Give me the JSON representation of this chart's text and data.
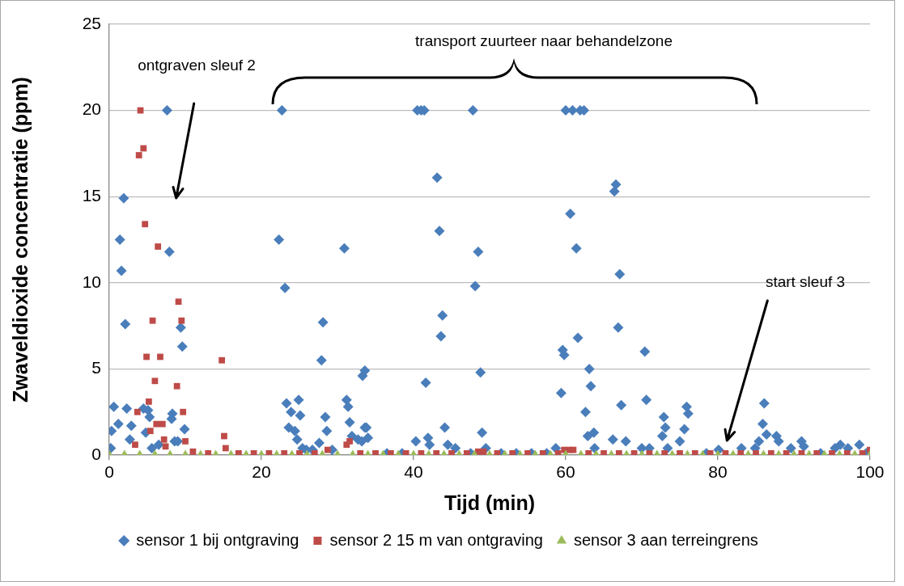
{
  "chart_data": {
    "type": "scatter",
    "xlabel": "Tijd (min)",
    "ylabel": "Zwaveldioxide concentratie (ppm)",
    "xlim": [
      0,
      100
    ],
    "xticks": [
      0,
      20,
      40,
      60,
      80,
      100
    ],
    "ylim": [
      0,
      25
    ],
    "yticks": [
      0,
      5,
      10,
      15,
      20,
      25
    ],
    "grid": "y",
    "legend": "bottom",
    "annotations": [
      "ontgraven sleuf 2",
      "transport zuurteer naar behandelzone",
      "start sleuf 3"
    ],
    "series": [
      {
        "name": "sensor 1 bij ontgraving",
        "color": "#4a7ebb",
        "marker": "diamond",
        "x": [
          0.2,
          0.3,
          0.6,
          1.2,
          1.4,
          1.6,
          1.9,
          2.1,
          2.3,
          2.7,
          2.9,
          4.5,
          4.8,
          5.1,
          5.3,
          5.6,
          6.5,
          7.6,
          7.9,
          8.2,
          8.3,
          8.6,
          9.0,
          9.4,
          9.6,
          9.9,
          22.3,
          22.7,
          23.1,
          23.3,
          23.6,
          23.9,
          24.4,
          24.7,
          24.9,
          25.1,
          25.4,
          25.9,
          26.7,
          27.6,
          27.9,
          28.1,
          28.4,
          28.6,
          29.3,
          30.9,
          31.2,
          31.4,
          31.6,
          31.9,
          32.7,
          33.2,
          33.3,
          33.6,
          33.6,
          33.8,
          34.0,
          36.5,
          38.5,
          40.3,
          40.5,
          41.0,
          41.4,
          41.6,
          41.9,
          42.1,
          43.1,
          43.4,
          43.6,
          43.8,
          44.1,
          44.5,
          45.5,
          47.5,
          47.8,
          48.1,
          48.5,
          48.8,
          49.0,
          49.5,
          51.5,
          53.5,
          55.5,
          57.5,
          58.7,
          59.4,
          59.6,
          59.8,
          60.0,
          60.6,
          60.9,
          61.4,
          61.6,
          61.9,
          62.4,
          62.6,
          62.9,
          63.1,
          63.3,
          63.7,
          63.8,
          66.2,
          66.4,
          66.6,
          66.9,
          67.1,
          67.3,
          67.9,
          70.0,
          70.4,
          70.6,
          71.0,
          72.7,
          72.9,
          73.1,
          73.4,
          75.0,
          75.6,
          75.9,
          76.1,
          78.5,
          80.1,
          83.1,
          84.9,
          85.4,
          85.9,
          86.1,
          86.4,
          87.7,
          88.0,
          89.6,
          91.0,
          91.3,
          93.5,
          95.4,
          96.1,
          97.1,
          98.6,
          99.5
        ],
        "values": [
          0.4,
          1.4,
          2.8,
          1.8,
          12.5,
          10.7,
          14.9,
          7.6,
          2.7,
          0.9,
          1.7,
          2.7,
          1.3,
          2.6,
          2.2,
          0.4,
          0.6,
          20,
          11.8,
          2.1,
          2.4,
          0.8,
          0.8,
          7.4,
          6.3,
          1.5,
          12.5,
          20,
          9.7,
          3.0,
          1.6,
          2.5,
          1.4,
          0.9,
          3.2,
          2.3,
          0.4,
          0.3,
          0.3,
          0.7,
          5.5,
          7.7,
          2.2,
          1.4,
          0.3,
          12.0,
          3.2,
          2.8,
          1.9,
          1.1,
          0.9,
          0.8,
          4.6,
          4.9,
          1.6,
          1.6,
          1.0,
          0.1,
          0.1,
          0.8,
          20,
          20,
          20,
          4.2,
          1.0,
          0.6,
          16.1,
          13.0,
          6.9,
          8.1,
          1.6,
          0.6,
          0.4,
          0.1,
          20,
          9.8,
          11.8,
          4.8,
          1.3,
          0.4,
          0.1,
          0.1,
          0.1,
          0.1,
          0.4,
          3.6,
          6.1,
          5.8,
          20,
          14.0,
          20,
          12.0,
          6.8,
          20,
          20,
          2.5,
          1.1,
          5.0,
          4.0,
          1.3,
          0.4,
          0.9,
          15.3,
          15.7,
          7.4,
          10.5,
          2.9,
          0.8,
          0.4,
          6.0,
          3.2,
          0.4,
          1.1,
          2.2,
          1.6,
          0.4,
          0.8,
          1.5,
          2.8,
          2.4,
          0.1,
          0.3,
          0.4,
          0.4,
          0.8,
          1.8,
          3.0,
          1.2,
          1.1,
          0.8,
          0.4,
          0.8,
          0.5,
          0.1,
          0.4,
          0.6,
          0.4,
          0.6,
          0.1
        ]
      },
      {
        "name": "sensor 2 15 m van ontgraving",
        "color": "#be4b48",
        "marker": "square",
        "x": [
          3.4,
          3.7,
          3.9,
          4.1,
          4.5,
          4.7,
          4.9,
          5.2,
          5.4,
          5.7,
          6.0,
          6.2,
          6.4,
          6.7,
          7.0,
          7.2,
          7.4,
          8.9,
          9.1,
          9.5,
          9.7,
          10.0,
          11,
          13,
          14.8,
          15.1,
          15.3,
          17,
          19,
          21,
          23,
          25,
          27,
          28.7,
          31.2,
          31.6,
          33,
          35,
          37,
          39,
          41,
          43,
          45,
          47,
          48.5,
          49.2,
          51,
          53,
          55,
          57,
          59,
          59.8,
          60.5,
          61,
          63,
          65,
          67,
          69,
          71,
          73,
          75,
          77,
          79,
          81,
          83,
          85,
          87,
          89,
          91,
          93,
          95,
          97,
          99,
          100
        ],
        "values": [
          0.6,
          2.5,
          17.4,
          20,
          17.8,
          13.4,
          5.7,
          3.1,
          1.4,
          7.8,
          4.3,
          1.8,
          12.1,
          5.7,
          1.8,
          0.9,
          0.5,
          4.0,
          8.9,
          7.8,
          2.5,
          0.8,
          0.2,
          0.1,
          5.5,
          1.1,
          0.4,
          0.1,
          0.1,
          0.1,
          0.1,
          0.1,
          0.1,
          0.3,
          0.6,
          0.8,
          0.1,
          0.1,
          0.1,
          0.1,
          0.1,
          0.1,
          0.1,
          0.1,
          0.2,
          0.2,
          0.1,
          0.1,
          0.1,
          0.1,
          0.1,
          0.3,
          0.3,
          0.3,
          0.1,
          0.1,
          0.1,
          0.1,
          0.1,
          0.1,
          0.1,
          0.1,
          0.1,
          0.1,
          0.1,
          0.1,
          0.1,
          0.1,
          0.1,
          0.1,
          0.1,
          0.1,
          0.1,
          0.3
        ]
      },
      {
        "name": "sensor 3 aan terreingrens",
        "color": "#9bbb59",
        "marker": "triangle",
        "x": [
          0,
          2,
          4,
          6,
          8,
          10,
          12,
          14,
          16,
          18,
          20,
          22,
          24,
          26,
          28,
          30,
          32,
          34,
          36,
          38,
          40,
          42,
          44,
          46,
          48,
          50,
          52,
          54,
          56,
          58,
          60,
          62,
          64,
          66,
          68,
          70,
          72,
          74,
          76,
          78,
          80,
          82,
          84,
          86,
          88,
          90,
          92,
          94,
          96,
          98,
          100
        ],
        "values": [
          0,
          0,
          0,
          0,
          0,
          0,
          0,
          0,
          0,
          0,
          0,
          0,
          0,
          0,
          0,
          0,
          0,
          0,
          0,
          0,
          0,
          0,
          0,
          0,
          0,
          0,
          0,
          0,
          0,
          0,
          0,
          0,
          0,
          0,
          0,
          0,
          0,
          0,
          0,
          0,
          0,
          0,
          0,
          0,
          0,
          0,
          0,
          0,
          0,
          0,
          0
        ]
      }
    ]
  }
}
